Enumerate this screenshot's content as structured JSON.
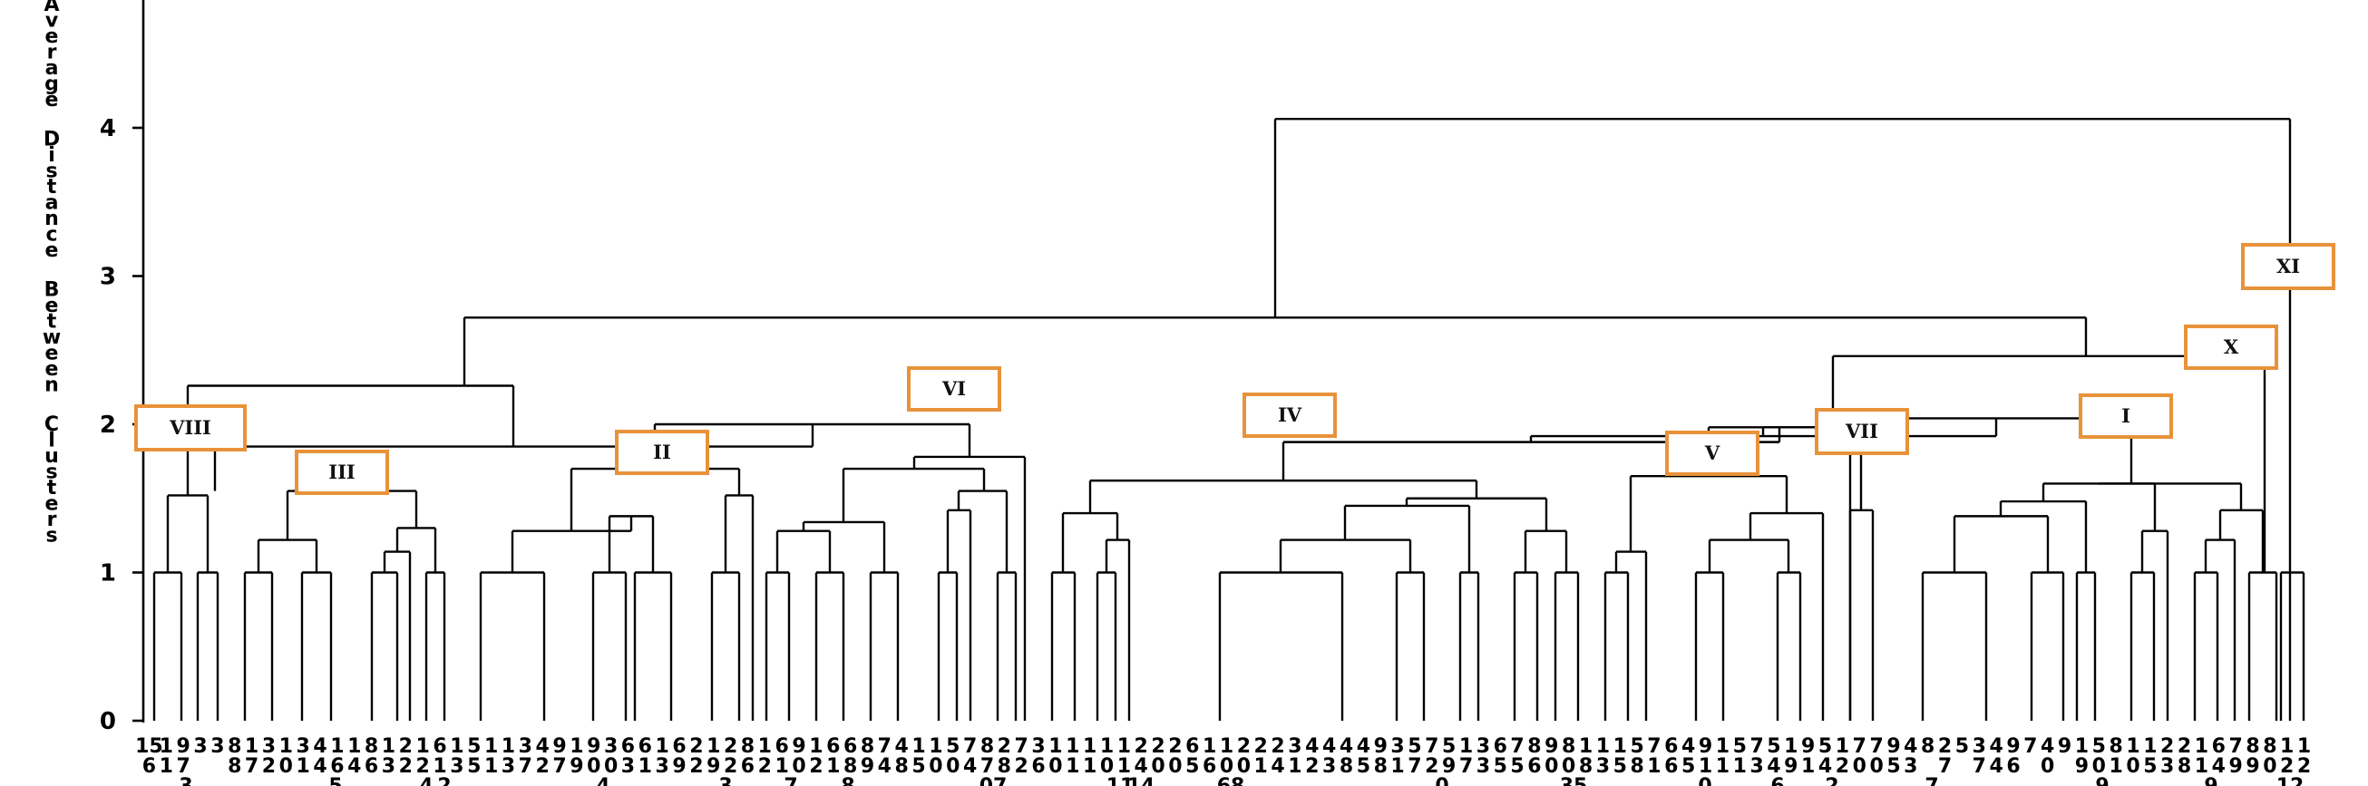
{
  "chart_data": {
    "type": "dendrogram",
    "ylabel": "Average Distance Between Clusters",
    "ylim": [
      0,
      4.7
    ],
    "yticks": [
      0,
      1,
      2,
      3,
      4
    ],
    "leaf_labels": [
      {
        "l1": "15",
        "l2": "6"
      },
      {
        "l1": "1",
        "l2": "1"
      },
      {
        "l1": "9",
        "l2": "7"
      },
      {
        "l1": "3",
        "l2": ""
      },
      {
        "l1": "3",
        "l2": ""
      },
      {
        "l1": "8",
        "l2": "8"
      },
      {
        "l1": "1",
        "l2": "7"
      },
      {
        "l1": "3",
        "l2": "2"
      },
      {
        "l1": "1",
        "l2": "0"
      },
      {
        "l1": "3",
        "l2": "1"
      },
      {
        "l1": "4",
        "l2": "4"
      },
      {
        "l1": "1",
        "l2": "6"
      },
      {
        "l1": "1",
        "l2": "4"
      },
      {
        "l1": "8",
        "l2": "6"
      },
      {
        "l1": "1",
        "l2": "3"
      },
      {
        "l1": "2",
        "l2": "2"
      },
      {
        "l1": "1",
        "l2": "2"
      },
      {
        "l1": "6",
        "l2": "1"
      },
      {
        "l1": "1",
        "l2": "3"
      },
      {
        "l1": "5",
        "l2": "5"
      },
      {
        "l1": "1",
        "l2": "1"
      },
      {
        "l1": "1",
        "l2": "3"
      },
      {
        "l1": "3",
        "l2": "7"
      },
      {
        "l1": "4",
        "l2": "2"
      },
      {
        "l1": "9",
        "l2": "7"
      },
      {
        "l1": "1",
        "l2": "9"
      },
      {
        "l1": "9",
        "l2": "0"
      },
      {
        "l1": "3",
        "l2": "0"
      },
      {
        "l1": "6",
        "l2": "3"
      },
      {
        "l1": "6",
        "l2": "1"
      },
      {
        "l1": "1",
        "l2": "3"
      },
      {
        "l1": "6",
        "l2": "9"
      },
      {
        "l1": "2",
        "l2": "2"
      },
      {
        "l1": "1",
        "l2": "9"
      },
      {
        "l1": "2",
        "l2": "2"
      },
      {
        "l1": "8",
        "l2": "6"
      },
      {
        "l1": "1",
        "l2": "2"
      },
      {
        "l1": "6",
        "l2": "1"
      },
      {
        "l1": "9",
        "l2": "0"
      },
      {
        "l1": "1",
        "l2": "2"
      },
      {
        "l1": "6",
        "l2": "1"
      },
      {
        "l1": "6",
        "l2": "8"
      },
      {
        "l1": "8",
        "l2": "9"
      },
      {
        "l1": "7",
        "l2": "4"
      },
      {
        "l1": "4",
        "l2": "8"
      },
      {
        "l1": "1",
        "l2": "5"
      },
      {
        "l1": "1",
        "l2": "0"
      },
      {
        "l1": "5",
        "l2": "0"
      },
      {
        "l1": "7",
        "l2": "4"
      },
      {
        "l1": "8",
        "l2": "7"
      },
      {
        "l1": "2",
        "l2": "8"
      },
      {
        "l1": "7",
        "l2": "2"
      },
      {
        "l1": "3",
        "l2": "6"
      },
      {
        "l1": "1",
        "l2": "0"
      },
      {
        "l1": "1",
        "l2": "1"
      },
      {
        "l1": "1",
        "l2": "1"
      },
      {
        "l1": "1",
        "l2": "0"
      },
      {
        "l1": "1",
        "l2": "1"
      },
      {
        "l1": "2",
        "l2": "4"
      },
      {
        "l1": "2",
        "l2": "0"
      },
      {
        "l1": "2",
        "l2": "0"
      },
      {
        "l1": "6",
        "l2": "5"
      },
      {
        "l1": "1",
        "l2": "6"
      },
      {
        "l1": "1",
        "l2": "0"
      },
      {
        "l1": "2",
        "l2": "0"
      },
      {
        "l1": "2",
        "l2": "1"
      },
      {
        "l1": "2",
        "l2": "4"
      },
      {
        "l1": "3",
        "l2": "1"
      },
      {
        "l1": "4",
        "l2": "2"
      },
      {
        "l1": "4",
        "l2": "3"
      },
      {
        "l1": "4",
        "l2": "8"
      },
      {
        "l1": "4",
        "l2": "5"
      },
      {
        "l1": "9",
        "l2": "8"
      },
      {
        "l1": "3",
        "l2": "1"
      },
      {
        "l1": "5",
        "l2": "7"
      },
      {
        "l1": "7",
        "l2": "2"
      },
      {
        "l1": "5",
        "l2": "9"
      },
      {
        "l1": "1",
        "l2": "7"
      },
      {
        "l1": "3",
        "l2": "3"
      },
      {
        "l1": "6",
        "l2": "5"
      },
      {
        "l1": "7",
        "l2": "5"
      },
      {
        "l1": "8",
        "l2": "6"
      },
      {
        "l1": "9",
        "l2": "0"
      },
      {
        "l1": "8",
        "l2": "0"
      },
      {
        "l1": "1",
        "l2": "8"
      },
      {
        "l1": "1",
        "l2": "3"
      },
      {
        "l1": "1",
        "l2": "5"
      },
      {
        "l1": "5",
        "l2": "8"
      },
      {
        "l1": "7",
        "l2": "1"
      },
      {
        "l1": "6",
        "l2": "6"
      },
      {
        "l1": "4",
        "l2": "5"
      },
      {
        "l1": "9",
        "l2": "1"
      },
      {
        "l1": "1",
        "l2": "1"
      },
      {
        "l1": "5",
        "l2": "1"
      },
      {
        "l1": "7",
        "l2": "3"
      },
      {
        "l1": "5",
        "l2": "4"
      },
      {
        "l1": "1",
        "l2": "9"
      },
      {
        "l1": "9",
        "l2": "1"
      },
      {
        "l1": "5",
        "l2": "4"
      },
      {
        "l1": "1",
        "l2": "2"
      },
      {
        "l1": "7",
        "l2": "0"
      },
      {
        "l1": "7",
        "l2": "0"
      },
      {
        "l1": "9",
        "l2": "5"
      },
      {
        "l1": "4",
        "l2": "3"
      },
      {
        "l1": "8",
        "l2": ""
      },
      {
        "l1": "2",
        "l2": "7"
      },
      {
        "l1": "5",
        "l2": ""
      },
      {
        "l1": "3",
        "l2": "7"
      },
      {
        "l1": "4",
        "l2": "4"
      },
      {
        "l1": "9",
        "l2": "6"
      },
      {
        "l1": "7",
        "l2": ""
      },
      {
        "l1": "4",
        "l2": "0"
      },
      {
        "l1": "9",
        "l2": ""
      },
      {
        "l1": "1",
        "l2": "9"
      },
      {
        "l1": "5",
        "l2": "0"
      },
      {
        "l1": "8",
        "l2": "1"
      },
      {
        "l1": "1",
        "l2": "0"
      },
      {
        "l1": "1",
        "l2": "5"
      },
      {
        "l1": "2",
        "l2": "3"
      },
      {
        "l1": "2",
        "l2": "8"
      },
      {
        "l1": "1",
        "l2": "1"
      },
      {
        "l1": "6",
        "l2": "4"
      },
      {
        "l1": "7",
        "l2": "9"
      },
      {
        "l1": "8",
        "l2": "9"
      },
      {
        "l1": "8",
        "l2": "0"
      },
      {
        "l1": "1",
        "l2": "2"
      },
      {
        "l1": "1",
        "l2": "2"
      }
    ],
    "leaf_label_third_row": [
      "3",
      "5",
      "4",
      "2",
      "4",
      "3",
      "7",
      "8",
      "07",
      "11",
      "14",
      "68",
      "0",
      "35",
      "0",
      "6",
      "2",
      "7",
      "9",
      "9",
      "12"
    ],
    "cluster_labels": [
      "I",
      "II",
      "III",
      "IV",
      "V",
      "VI",
      "VII",
      "VIII",
      "X",
      "XI"
    ],
    "merge_heights": [
      1.0,
      1.14,
      1.22,
      1.28,
      1.3,
      1.34,
      1.38,
      1.4,
      1.42,
      1.45,
      1.48,
      1.5,
      1.52,
      1.55,
      1.6,
      1.62,
      1.65,
      1.7,
      1.72,
      1.78,
      1.8,
      1.85,
      1.88,
      1.92,
      1.98,
      2.0,
      2.04,
      2.26,
      2.46,
      2.72,
      4.06
    ]
  }
}
